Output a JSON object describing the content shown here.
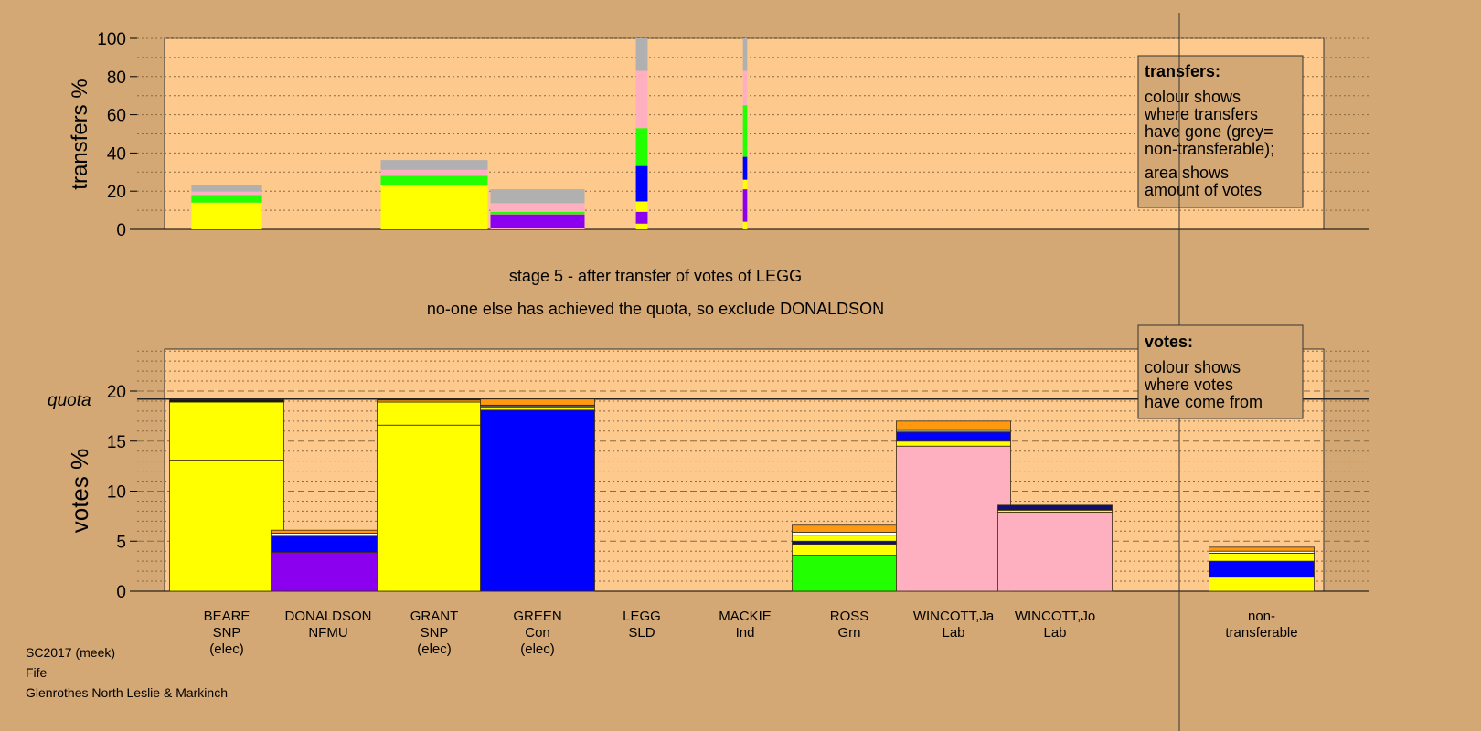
{
  "colors": {
    "background": "#d4a874",
    "plot_bg": "#fec98c",
    "legend_bg": "#d4a874"
  },
  "chart_data": [
    {
      "type": "bar",
      "title": "",
      "ylabel": "transfers %",
      "ylim": [
        0,
        100
      ],
      "yticks": [
        0,
        20,
        40,
        60,
        80,
        100
      ],
      "grid": "dotted every 10",
      "note": "stacked; bar width shows relative amount of votes transferred",
      "bars": [
        {
          "candidate": "BEARE",
          "relative_amount": 0.66,
          "segments": [
            {
              "color": "#ffff00",
              "from": 0,
              "to": 14
            },
            {
              "color": "#22ff00",
              "from": 14,
              "to": 18
            },
            {
              "color": "#ffb0c0",
              "from": 18,
              "to": 19.8
            },
            {
              "color": "#b0b0b0",
              "from": 19.8,
              "to": 23.4
            }
          ]
        },
        {
          "candidate": "GRANT",
          "relative_amount": 1.0,
          "segments": [
            {
              "color": "#ffff00",
              "from": 0,
              "to": 22.9
            },
            {
              "color": "#22ff00",
              "from": 22.9,
              "to": 28
            },
            {
              "color": "#ffb0c0",
              "from": 28,
              "to": 31.2
            },
            {
              "color": "#b0b0b0",
              "from": 31.2,
              "to": 36.3
            }
          ]
        },
        {
          "candidate": "GREEN",
          "relative_amount": 0.88,
          "segments": [
            {
              "color": "#ffb0c0",
              "from": 0,
              "to": 0.8
            },
            {
              "color": "#8b00ee",
              "from": 0.8,
              "to": 7.8
            },
            {
              "color": "#22ff00",
              "from": 8,
              "to": 9.2
            },
            {
              "color": "#ffb0c0",
              "from": 9.2,
              "to": 13.7
            },
            {
              "color": "#b0b0b0",
              "from": 13.7,
              "to": 21
            }
          ]
        },
        {
          "candidate": "LEGG",
          "relative_amount": 0.11,
          "segments": [
            {
              "color": "#ffff00",
              "from": 0,
              "to": 2.8
            },
            {
              "color": "#8b00ee",
              "from": 3,
              "to": 9.2
            },
            {
              "color": "#ffff00",
              "from": 9.2,
              "to": 14.6
            },
            {
              "color": "#0000ff",
              "from": 14.6,
              "to": 33.2
            },
            {
              "color": "#22ff00",
              "from": 33.2,
              "to": 53
            },
            {
              "color": "#ffb0c0",
              "from": 53,
              "to": 83
            },
            {
              "color": "#b0b0b0",
              "from": 83,
              "to": 100
            }
          ]
        },
        {
          "candidate": "MACKIE",
          "relative_amount": 0.04,
          "segments": [
            {
              "color": "#ffff00",
              "from": 0,
              "to": 4
            },
            {
              "color": "#8b00ee",
              "from": 4,
              "to": 21
            },
            {
              "color": "#ffff00",
              "from": 21,
              "to": 26
            },
            {
              "color": "#0000ff",
              "from": 26,
              "to": 38
            },
            {
              "color": "#22ff00",
              "from": 38,
              "to": 65
            },
            {
              "color": "#ffb0c0",
              "from": 65,
              "to": 83
            },
            {
              "color": "#b0b0b0",
              "from": 83,
              "to": 100
            }
          ]
        }
      ],
      "legend": {
        "title": "transfers:",
        "lines": [
          "colour shows",
          "where transfers",
          "have gone (grey=",
          "non-transferable);"
        ],
        "lines2": [
          "area shows",
          "amount of votes"
        ]
      }
    },
    {
      "type": "bar",
      "ylabel": "votes %",
      "ylim": [
        0,
        24.2
      ],
      "yticks": [
        0,
        5,
        10,
        15,
        20
      ],
      "quota": 19.2,
      "quota_label": "quota",
      "grid": "dashed every 5, dotted every 1",
      "categories": [
        {
          "name": "BEARE",
          "party": "SNP",
          "status": "(elec)"
        },
        {
          "name": "DONALDSON",
          "party": "NFMU",
          "status": ""
        },
        {
          "name": "GRANT",
          "party": "SNP",
          "status": "(elec)"
        },
        {
          "name": "GREEN",
          "party": "Con",
          "status": "(elec)"
        },
        {
          "name": "LEGG",
          "party": "SLD",
          "status": ""
        },
        {
          "name": "MACKIE",
          "party": "Ind",
          "status": ""
        },
        {
          "name": "ROSS",
          "party": "Grn",
          "status": ""
        },
        {
          "name": "WINCOTT,Ja",
          "party": "Lab",
          "status": ""
        },
        {
          "name": "WINCOTT,Jo",
          "party": "Lab",
          "status": ""
        },
        {
          "name": "non-",
          "party": "transferable",
          "status": ""
        }
      ],
      "stacks": [
        [
          {
            "color": "#ffff00",
            "from": 0,
            "to": 13.1
          },
          {
            "color": "#ffff00",
            "from": 13.1,
            "to": 18.9
          },
          {
            "color": "#101010",
            "from": 18.9,
            "to": 19.1
          }
        ],
        [
          {
            "color": "#8b00ee",
            "from": 0,
            "to": 3.9
          },
          {
            "color": "#0000ff",
            "from": 3.9,
            "to": 5.5
          },
          {
            "color": "#ffffff",
            "from": 5.5,
            "to": 5.8
          },
          {
            "color": "#ff9a10",
            "from": 5.8,
            "to": 6.1
          }
        ],
        [
          {
            "color": "#ffff00",
            "from": 0,
            "to": 16.6
          },
          {
            "color": "#ffff00",
            "from": 16.6,
            "to": 18.9
          },
          {
            "color": "#ff9a10",
            "from": 18.9,
            "to": 19.1
          }
        ],
        [
          {
            "color": "#0000ff",
            "from": 0,
            "to": 18.1
          },
          {
            "color": "#ffff00",
            "from": 18.1,
            "to": 18.3
          },
          {
            "color": "#555555",
            "from": 18.3,
            "to": 18.6
          },
          {
            "color": "#ff9a10",
            "from": 18.6,
            "to": 19.2
          }
        ],
        [],
        [],
        [
          {
            "color": "#22ff00",
            "from": 0,
            "to": 3.6
          },
          {
            "color": "#ffff00",
            "from": 3.6,
            "to": 4.7
          },
          {
            "color": "#101070",
            "from": 4.7,
            "to": 5.0
          },
          {
            "color": "#ffff00",
            "from": 5.0,
            "to": 5.6
          },
          {
            "color": "#ffffff",
            "from": 5.6,
            "to": 5.9
          },
          {
            "color": "#ff9a10",
            "from": 5.9,
            "to": 6.6
          }
        ],
        [
          {
            "color": "#ffb0c0",
            "from": 0,
            "to": 14.5
          },
          {
            "color": "#ffff00",
            "from": 14.5,
            "to": 15.0
          },
          {
            "color": "#0000ff",
            "from": 15.0,
            "to": 15.9
          },
          {
            "color": "#909060",
            "from": 15.9,
            "to": 16.2
          },
          {
            "color": "#ff9a10",
            "from": 16.2,
            "to": 17.0
          }
        ],
        [
          {
            "color": "#ffb0c0",
            "from": 0,
            "to": 7.9
          },
          {
            "color": "#ffff00",
            "from": 7.9,
            "to": 8.1
          },
          {
            "color": "#101070",
            "from": 8.1,
            "to": 8.6
          }
        ],
        [
          {
            "color": "#ffff00",
            "from": 0,
            "to": 1.4
          },
          {
            "color": "#0000ff",
            "from": 1.4,
            "to": 3.0
          },
          {
            "color": "#ffff00",
            "from": 3.0,
            "to": 3.8
          },
          {
            "color": "#ffffff",
            "from": 3.8,
            "to": 4.0
          },
          {
            "color": "#ff9a10",
            "from": 4.0,
            "to": 4.4
          }
        ]
      ],
      "legend": {
        "title": "votes:",
        "lines": [
          "colour shows",
          "where votes",
          "have come from"
        ]
      }
    }
  ],
  "stage_title": "stage 5 - after transfer of votes of LEGG",
  "stage_subtitle": "no-one else has achieved the quota, so exclude DONALDSON",
  "footer": [
    "SC2017 (meek)",
    "Fife",
    "Glenrothes North Leslie & Markinch"
  ]
}
